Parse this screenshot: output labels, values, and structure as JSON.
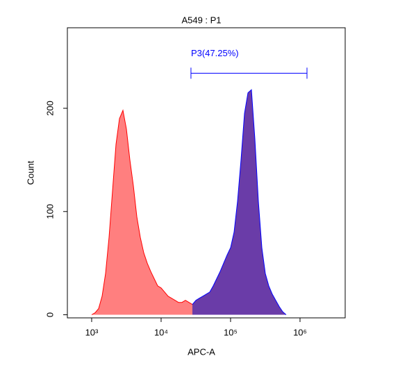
{
  "chart_data": {
    "type": "area",
    "title": "A549 : P1",
    "xlabel": "APC-A",
    "ylabel": "Count",
    "xscale": "log",
    "xlim": [
      447,
      4470000
    ],
    "ylim": [
      -3,
      278
    ],
    "xticks": [
      {
        "value": 1000,
        "label": "10³"
      },
      {
        "value": 10000,
        "label": "10⁴"
      },
      {
        "value": 100000,
        "label": "10⁵"
      },
      {
        "value": 1000000,
        "label": "10⁶"
      }
    ],
    "yticks": [
      0,
      100,
      200
    ],
    "series": [
      {
        "color": "#ff7f7f",
        "edgecolor": "#ff0000",
        "x": [
          1000,
          1122,
          1259,
          1413,
          1585,
          1778,
          1995,
          2239,
          2512,
          2818,
          3162,
          3548,
          3981,
          4467,
          5012,
          5623,
          6310,
          7079,
          7943,
          8913,
          10000,
          11220,
          12590,
          14130,
          15850,
          17780,
          19950,
          22390,
          25120,
          28180
        ],
        "values": [
          0,
          2,
          6,
          18,
          40,
          75,
          120,
          165,
          190,
          198,
          180,
          150,
          125,
          95,
          75,
          60,
          50,
          42,
          35,
          28,
          26,
          22,
          18,
          16,
          14,
          12,
          12,
          14,
          12,
          10
        ]
      },
      {
        "color": "#6a3ca8",
        "edgecolor": "#0000ff",
        "x": [
          28180,
          31620,
          35480,
          39810,
          44670,
          50120,
          56230,
          63100,
          70790,
          79430,
          89130,
          100000,
          112200,
          125900,
          141300,
          158500,
          177800,
          199500,
          223900,
          251200,
          281800,
          316200,
          354800,
          398100,
          446700,
          501200,
          562300,
          631000
        ],
        "values": [
          10,
          14,
          16,
          18,
          20,
          22,
          28,
          35,
          42,
          50,
          58,
          65,
          80,
          110,
          150,
          195,
          215,
          218,
          170,
          110,
          65,
          40,
          28,
          20,
          14,
          8,
          3,
          0
        ]
      }
    ],
    "gate": {
      "label": "P3(47.25%)",
      "x": [
        26900,
        1260000
      ],
      "y": 234,
      "color": "#0000ff"
    }
  }
}
